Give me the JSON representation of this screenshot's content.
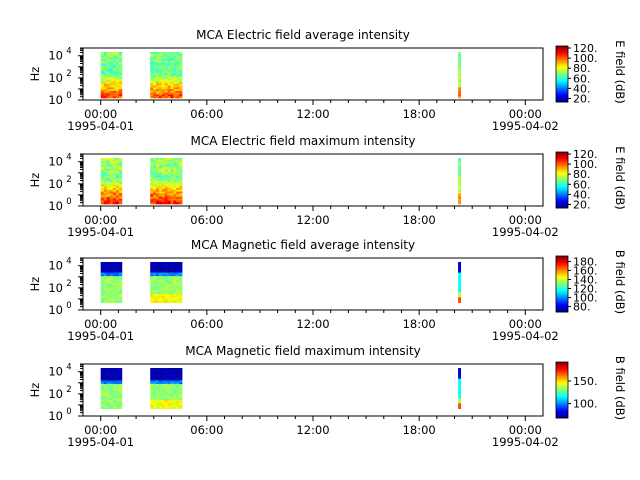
{
  "chart_data": [
    {
      "type": "heatmap",
      "title": "MCA  Electric field average intensity",
      "ylabel": "Hz",
      "colorbar_label": "E field (dB)",
      "colorbar_range": [
        13,
        124
      ],
      "colorbar_ticks": [
        "20.",
        "40.",
        "60.",
        "80.",
        "100.",
        "120."
      ],
      "colorbar_values": [
        20,
        40,
        60,
        80,
        100,
        120
      ],
      "x_tick_labels": [
        "00:00",
        "06:00",
        "12:00",
        "18:00",
        "00:00"
      ],
      "x_date_labels": [
        "1995-04-01",
        "1995-04-02"
      ],
      "y_tick_labels": [
        "10",
        "10",
        "10"
      ],
      "y_tick_exponents": [
        "0",
        "2",
        "4"
      ],
      "yscale": "log",
      "ylim_log10": [
        0,
        4.7
      ],
      "xlim_hours": [
        -1,
        25
      ],
      "data_blocks": [
        {
          "t_start": 0.0,
          "t_end": 1.2,
          "profile": "e_avg_a"
        },
        {
          "t_start": 2.8,
          "t_end": 4.6,
          "profile": "e_avg_b"
        },
        {
          "t_start": 20.2,
          "t_end": 20.35,
          "profile": "e_avg_c"
        }
      ]
    },
    {
      "type": "heatmap",
      "title": "MCA  Electric field maximum intensity",
      "ylabel": "Hz",
      "colorbar_label": "E field (dB)",
      "colorbar_range": [
        13,
        124
      ],
      "colorbar_ticks": [
        "20.",
        "40.",
        "60.",
        "80.",
        "100.",
        "120."
      ],
      "colorbar_values": [
        20,
        40,
        60,
        80,
        100,
        120
      ],
      "x_tick_labels": [
        "00:00",
        "06:00",
        "12:00",
        "18:00",
        "00:00"
      ],
      "x_date_labels": [
        "1995-04-01",
        "1995-04-02"
      ],
      "y_tick_labels": [
        "10",
        "10",
        "10"
      ],
      "y_tick_exponents": [
        "0",
        "2",
        "4"
      ],
      "yscale": "log",
      "ylim_log10": [
        0,
        4.7
      ],
      "xlim_hours": [
        -1,
        25
      ],
      "data_blocks": [
        {
          "t_start": 0.0,
          "t_end": 1.2,
          "profile": "e_max_a"
        },
        {
          "t_start": 2.8,
          "t_end": 4.6,
          "profile": "e_max_b"
        },
        {
          "t_start": 20.2,
          "t_end": 20.35,
          "profile": "e_max_c"
        }
      ]
    },
    {
      "type": "heatmap",
      "title": "MCA  Magnetic field average intensity",
      "ylabel": "Hz",
      "colorbar_label": "B field (dB)",
      "colorbar_range": [
        68,
        192
      ],
      "colorbar_ticks": [
        "80.",
        "100.",
        "120.",
        "140.",
        "160.",
        "180."
      ],
      "colorbar_values": [
        80,
        100,
        120,
        140,
        160,
        180
      ],
      "x_tick_labels": [
        "00:00",
        "06:00",
        "12:00",
        "18:00",
        "00:00"
      ],
      "x_date_labels": [
        "1995-04-01",
        "1995-04-02"
      ],
      "y_tick_labels": [
        "10",
        "10",
        "10"
      ],
      "y_tick_exponents": [
        "0",
        "2",
        "4"
      ],
      "yscale": "log",
      "ylim_log10": [
        0,
        4.7
      ],
      "xlim_hours": [
        -1,
        25
      ],
      "data_blocks": [
        {
          "t_start": 0.0,
          "t_end": 1.2,
          "profile": "b_avg_a"
        },
        {
          "t_start": 2.8,
          "t_end": 4.6,
          "profile": "b_avg_b"
        },
        {
          "t_start": 20.2,
          "t_end": 20.35,
          "profile": "b_avg_c"
        }
      ]
    },
    {
      "type": "heatmap",
      "title": "MCA  Magnetic field maximum intensity",
      "ylabel": "Hz",
      "colorbar_label": "B field (dB)",
      "colorbar_range": [
        68,
        192
      ],
      "colorbar_ticks": [
        "100.",
        "150."
      ],
      "colorbar_values": [
        100,
        150
      ],
      "x_tick_labels": [
        "00:00",
        "06:00",
        "12:00",
        "18:00",
        "00:00"
      ],
      "x_date_labels": [
        "1995-04-01",
        "1995-04-02"
      ],
      "y_tick_labels": [
        "10",
        "10",
        "10"
      ],
      "y_tick_exponents": [
        "0",
        "2",
        "4"
      ],
      "yscale": "log",
      "ylim_log10": [
        0,
        4.7
      ],
      "xlim_hours": [
        -1,
        25
      ],
      "data_blocks": [
        {
          "t_start": 0.0,
          "t_end": 1.2,
          "profile": "b_max_a"
        },
        {
          "t_start": 2.8,
          "t_end": 4.6,
          "profile": "b_max_b"
        },
        {
          "t_start": 20.2,
          "t_end": 20.35,
          "profile": "b_max_c"
        }
      ]
    }
  ]
}
